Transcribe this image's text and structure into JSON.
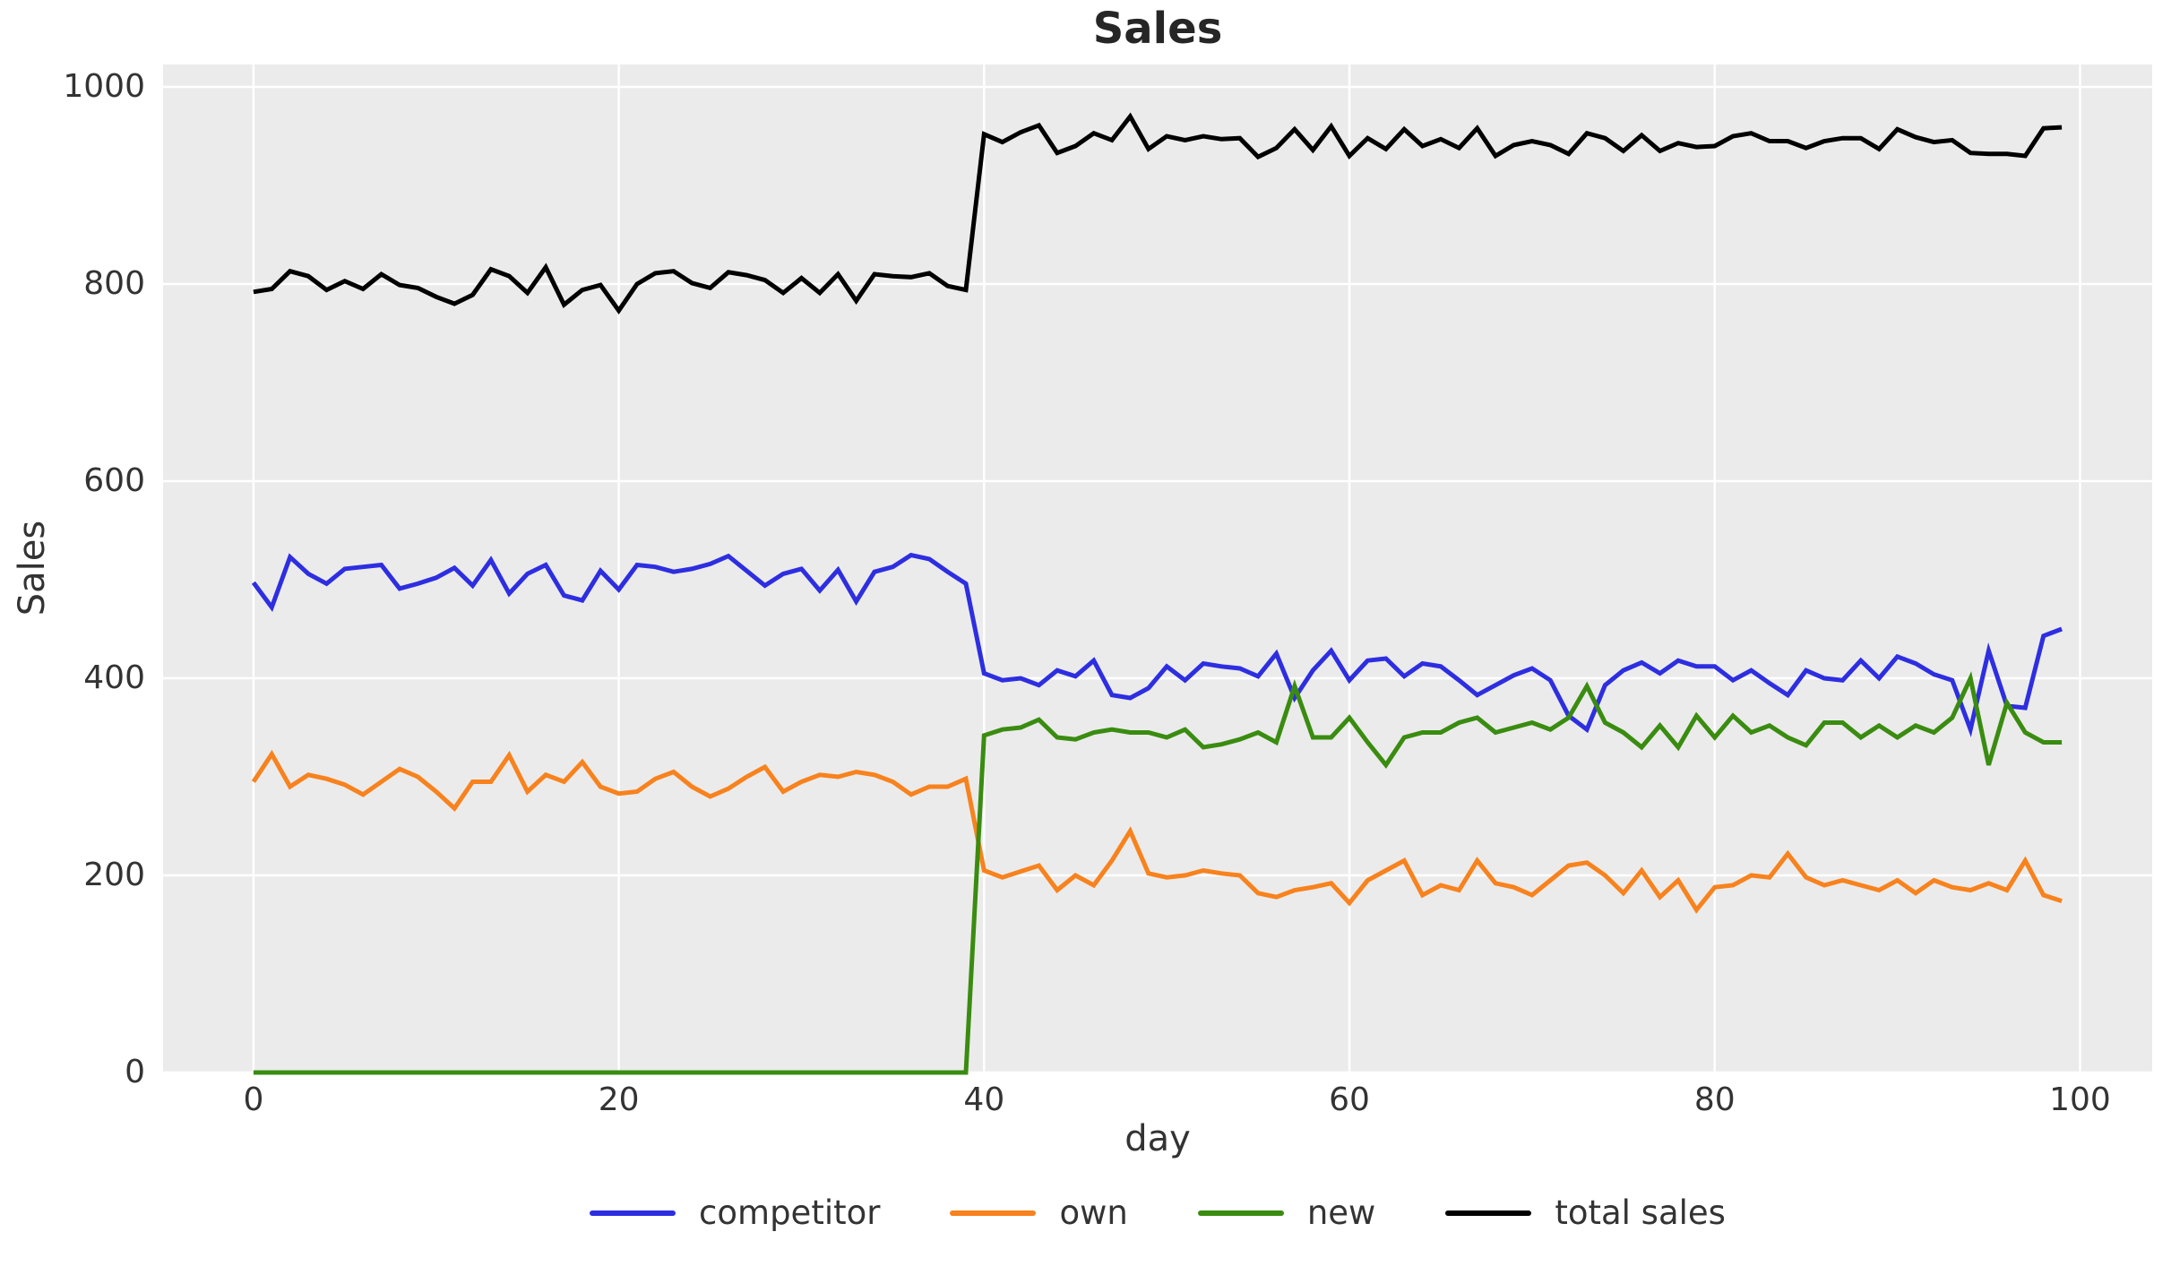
{
  "figure": {
    "background": "#ffffff",
    "axes_background": "#ebebeb",
    "grid_color": "#ffffff",
    "tick_color": "#333333",
    "title_color": "#262626"
  },
  "chart_data": {
    "type": "line",
    "title": "Sales",
    "xlabel": "day",
    "ylabel": "Sales",
    "xlim": [
      -4.95,
      103.95
    ],
    "ylim": [
      0,
      1022.7
    ],
    "xticks": [
      0,
      20,
      40,
      60,
      80,
      100
    ],
    "yticks": [
      0,
      200,
      400,
      600,
      800,
      1000
    ],
    "grid": true,
    "legend_position": "bottom-center",
    "x": [
      0,
      1,
      2,
      3,
      4,
      5,
      6,
      7,
      8,
      9,
      10,
      11,
      12,
      13,
      14,
      15,
      16,
      17,
      18,
      19,
      20,
      21,
      22,
      23,
      24,
      25,
      26,
      27,
      28,
      29,
      30,
      31,
      32,
      33,
      34,
      35,
      36,
      37,
      38,
      39,
      40,
      41,
      42,
      43,
      44,
      45,
      46,
      47,
      48,
      49,
      50,
      51,
      52,
      53,
      54,
      55,
      56,
      57,
      58,
      59,
      60,
      61,
      62,
      63,
      64,
      65,
      66,
      67,
      68,
      69,
      70,
      71,
      72,
      73,
      74,
      75,
      76,
      77,
      78,
      79,
      80,
      81,
      82,
      83,
      84,
      85,
      86,
      87,
      88,
      89,
      90,
      91,
      92,
      93,
      94,
      95,
      96,
      97,
      98,
      99
    ],
    "series": [
      {
        "name": "competitor",
        "color": "#2e2ee1",
        "values": [
          497,
          472,
          523,
          506,
          496,
          511,
          513,
          515,
          491,
          496,
          502,
          512,
          494,
          520,
          486,
          506,
          515,
          484,
          479,
          509,
          490,
          515,
          513,
          508,
          511,
          516,
          524,
          509,
          494,
          506,
          511,
          489,
          510,
          478,
          508,
          513,
          525,
          521,
          508,
          496,
          405,
          398,
          400,
          393,
          408,
          402,
          418,
          383,
          380,
          390,
          412,
          398,
          415,
          412,
          410,
          402,
          425,
          380,
          408,
          428,
          398,
          418,
          420,
          402,
          415,
          412,
          398,
          383,
          393,
          403,
          410,
          398,
          362,
          348,
          393,
          408,
          416,
          405,
          418,
          412,
          412,
          398,
          408,
          395,
          383,
          408,
          400,
          398,
          418,
          400,
          422,
          415,
          404,
          398,
          348,
          428,
          372,
          370,
          443,
          450
        ]
      },
      {
        "name": "own",
        "color": "#f8821d",
        "values": [
          295,
          323,
          290,
          302,
          298,
          292,
          282,
          295,
          308,
          300,
          285,
          268,
          295,
          295,
          322,
          285,
          302,
          295,
          315,
          290,
          283,
          285,
          298,
          305,
          290,
          280,
          288,
          300,
          310,
          285,
          295,
          302,
          300,
          305,
          302,
          295,
          282,
          290,
          290,
          298,
          205,
          198,
          204,
          210,
          185,
          200,
          190,
          215,
          245,
          202,
          198,
          200,
          205,
          202,
          200,
          182,
          178,
          185,
          188,
          192,
          172,
          195,
          205,
          215,
          180,
          190,
          185,
          215,
          192,
          188,
          180,
          195,
          210,
          213,
          200,
          182,
          205,
          178,
          195,
          165,
          188,
          190,
          200,
          198,
          222,
          198,
          190,
          195,
          190,
          185,
          195,
          182,
          195,
          188,
          185,
          192,
          185,
          215,
          180,
          174
        ]
      },
      {
        "name": "new",
        "color": "#3a8c10",
        "values": [
          0,
          0,
          0,
          0,
          0,
          0,
          0,
          0,
          0,
          0,
          0,
          0,
          0,
          0,
          0,
          0,
          0,
          0,
          0,
          0,
          0,
          0,
          0,
          0,
          0,
          0,
          0,
          0,
          0,
          0,
          0,
          0,
          0,
          0,
          0,
          0,
          0,
          0,
          0,
          0,
          342,
          348,
          350,
          358,
          340,
          338,
          345,
          348,
          345,
          345,
          340,
          348,
          330,
          333,
          338,
          345,
          335,
          392,
          340,
          340,
          360,
          335,
          312,
          340,
          345,
          345,
          355,
          360,
          345,
          350,
          355,
          348,
          360,
          392,
          355,
          345,
          330,
          352,
          330,
          362,
          340,
          362,
          345,
          352,
          340,
          332,
          355,
          355,
          340,
          352,
          340,
          352,
          345,
          360,
          400,
          312,
          375,
          345,
          335,
          335
        ]
      },
      {
        "name": "total sales",
        "color": "#000000",
        "values": [
          792,
          795,
          813,
          808,
          794,
          803,
          795,
          810,
          799,
          796,
          787,
          780,
          789,
          815,
          808,
          791,
          817,
          779,
          794,
          799,
          773,
          800,
          811,
          813,
          801,
          796,
          812,
          809,
          804,
          791,
          806,
          791,
          810,
          783,
          810,
          808,
          807,
          811,
          798,
          794,
          952,
          944,
          954,
          961,
          933,
          940,
          953,
          946,
          970,
          937,
          950,
          946,
          950,
          947,
          948,
          929,
          938,
          957,
          936,
          960,
          930,
          948,
          937,
          957,
          940,
          947,
          938,
          958,
          930,
          941,
          945,
          941,
          932,
          953,
          948,
          935,
          951,
          935,
          943,
          939,
          940,
          950,
          953,
          945,
          945,
          938,
          945,
          948,
          948,
          937,
          957,
          949,
          944,
          946,
          933,
          932,
          932,
          930,
          958,
          959
        ]
      }
    ]
  }
}
